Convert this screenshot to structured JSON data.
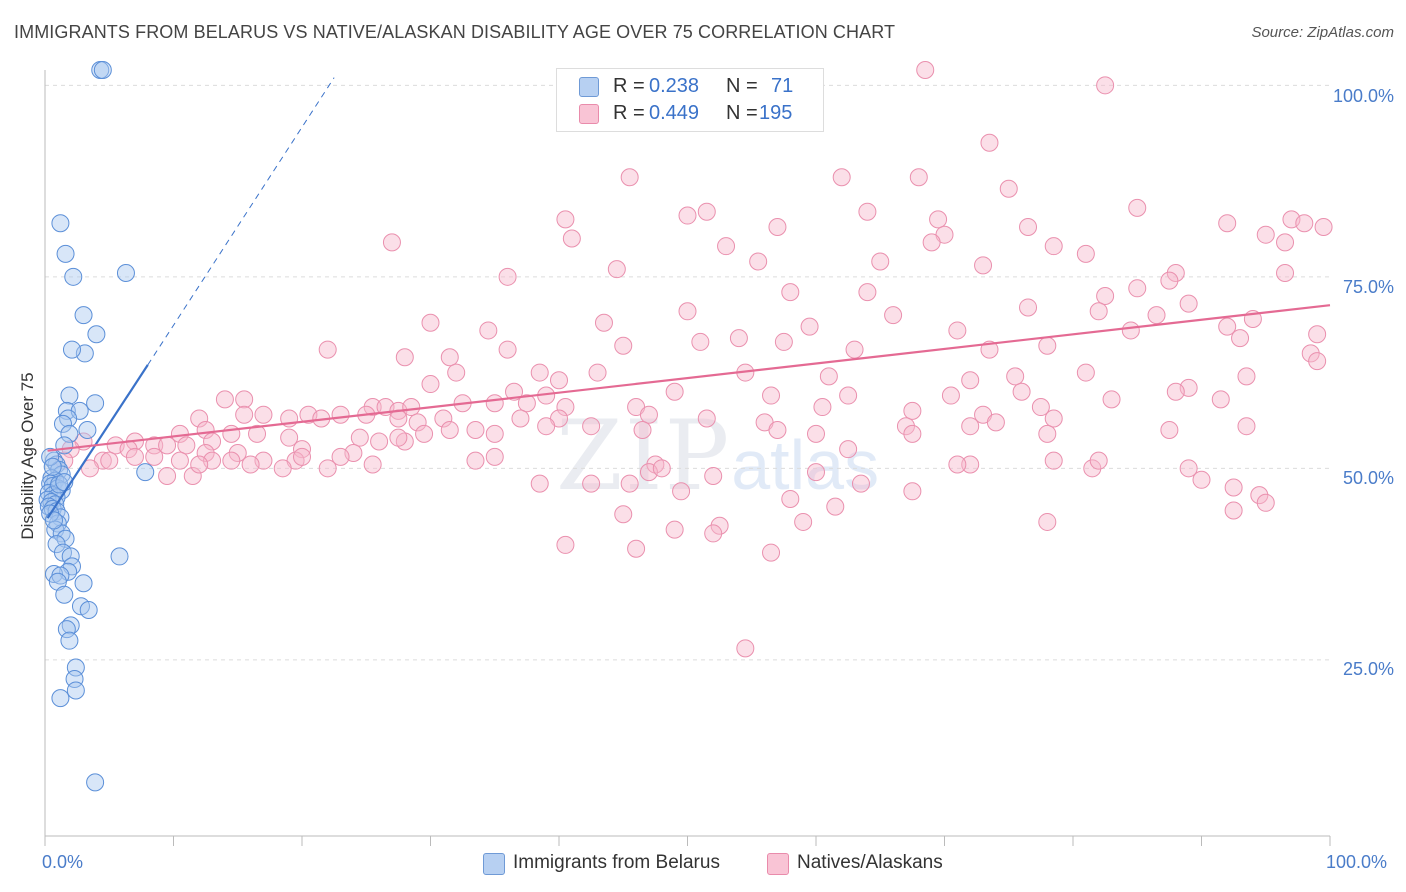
{
  "title": "IMMIGRANTS FROM BELARUS VS NATIVE/ALASKAN DISABILITY AGE OVER 75 CORRELATION CHART",
  "source": "Source: ZipAtlas.com",
  "watermark": {
    "zip": "ZIP",
    "atlas": "atlas"
  },
  "colors": {
    "blue": "#3a72c9",
    "blue_fill": "#a8c8f0",
    "pink": "#e46a93",
    "pink_fill": "#f7b8cc",
    "tick_text": "#4a7cc9",
    "grid": "#dcdcdc"
  },
  "legend_top": [
    {
      "swatch": "blue",
      "r_label": "R =",
      "r_value": "0.238",
      "n_label": "N =",
      "n_value": "71"
    },
    {
      "swatch": "pink",
      "r_label": "R =",
      "r_value": "0.449",
      "n_label": "N =",
      "n_value": "195"
    }
  ],
  "legend_bottom": [
    {
      "swatch": "blue",
      "label": "Immigrants from Belarus"
    },
    {
      "swatch": "pink",
      "label": "Natives/Alaskans"
    }
  ],
  "chart_data": {
    "type": "scatter",
    "title": "IMMIGRANTS FROM BELARUS VS NATIVE/ALASKAN DISABILITY AGE OVER 75 CORRELATION CHART",
    "xlabel": "",
    "ylabel": "Disability Age Over 75",
    "xlim": [
      0,
      100
    ],
    "ylim": [
      2,
      102
    ],
    "x_ticks": [
      "0.0%",
      "100.0%"
    ],
    "y_ticks": [
      {
        "value": 100,
        "label": "100.0%"
      },
      {
        "value": 75,
        "label": "75.0%"
      },
      {
        "value": 50,
        "label": "50.0%"
      },
      {
        "value": 25,
        "label": "25.0%"
      }
    ],
    "grid": true,
    "series": [
      {
        "name": "Immigrants from Belarus",
        "color": "blue",
        "r": 0.238,
        "n": 71,
        "trend": {
          "x0": 0.2,
          "y0": 43.5,
          "x1": 8.0,
          "y1": 63.5,
          "dash_x1": 22.5,
          "dash_y1": 101
        },
        "points": [
          [
            4.3,
            102
          ],
          [
            4.5,
            102
          ],
          [
            1.2,
            82
          ],
          [
            1.6,
            78
          ],
          [
            2.2,
            75
          ],
          [
            6.3,
            75.5
          ],
          [
            3.0,
            70
          ],
          [
            3.1,
            65
          ],
          [
            4.0,
            67.5
          ],
          [
            2.1,
            65.5
          ],
          [
            1.9,
            59.5
          ],
          [
            1.7,
            57.5
          ],
          [
            2.7,
            57.5
          ],
          [
            3.9,
            58.5
          ],
          [
            1.8,
            56.5
          ],
          [
            1.4,
            55.8
          ],
          [
            1.9,
            54.5
          ],
          [
            3.3,
            55
          ],
          [
            1.5,
            53
          ],
          [
            0.7,
            51
          ],
          [
            0.9,
            50.5
          ],
          [
            1.1,
            49.8
          ],
          [
            1.3,
            49.2
          ],
          [
            0.5,
            48.7
          ],
          [
            0.8,
            48.4
          ],
          [
            0.4,
            48
          ],
          [
            0.6,
            47.7
          ],
          [
            1.0,
            47.4
          ],
          [
            1.3,
            47.1
          ],
          [
            0.3,
            46.8
          ],
          [
            0.6,
            46.5
          ],
          [
            0.9,
            46.2
          ],
          [
            0.2,
            45.9
          ],
          [
            0.5,
            45.6
          ],
          [
            0.8,
            45.3
          ],
          [
            0.3,
            45.0
          ],
          [
            0.6,
            44.7
          ],
          [
            0.9,
            44.4
          ],
          [
            1.2,
            43.6
          ],
          [
            1.0,
            42.8
          ],
          [
            0.8,
            42
          ],
          [
            1.3,
            41.5
          ],
          [
            1.6,
            40.8
          ],
          [
            0.9,
            40.1
          ],
          [
            1.4,
            39
          ],
          [
            2.0,
            38.5
          ],
          [
            2.1,
            37.2
          ],
          [
            1.8,
            36.5
          ],
          [
            0.7,
            36.2
          ],
          [
            1.2,
            36
          ],
          [
            1.0,
            35.2
          ],
          [
            3.0,
            35
          ],
          [
            1.5,
            33.5
          ],
          [
            2.8,
            32
          ],
          [
            3.4,
            31.5
          ],
          [
            2.0,
            29.5
          ],
          [
            1.7,
            29
          ],
          [
            1.9,
            27.5
          ],
          [
            2.4,
            24
          ],
          [
            2.3,
            22.5
          ],
          [
            2.4,
            21
          ],
          [
            1.2,
            20
          ],
          [
            3.9,
            9
          ],
          [
            7.8,
            49.5
          ],
          [
            5.8,
            38.5
          ],
          [
            0.4,
            51.5
          ],
          [
            0.6,
            50.2
          ],
          [
            1.1,
            47.9
          ],
          [
            0.4,
            44.1
          ],
          [
            0.7,
            43.2
          ],
          [
            1.5,
            48.2
          ]
        ]
      },
      {
        "name": "Natives/Alaskans",
        "color": "pink",
        "r": 0.449,
        "n": 195,
        "trend": {
          "x0": 0.2,
          "y0": 52.3,
          "x1": 100,
          "y1": 71.3
        },
        "points": [
          [
            68.5,
            102
          ],
          [
            82.5,
            100
          ],
          [
            73.5,
            92.5
          ],
          [
            62.0,
            88
          ],
          [
            68.0,
            88
          ],
          [
            75.0,
            86.5
          ],
          [
            45.5,
            88
          ],
          [
            64.0,
            83.5
          ],
          [
            85.0,
            84
          ],
          [
            50.0,
            83
          ],
          [
            51.5,
            83.5
          ],
          [
            40.5,
            82.5
          ],
          [
            69.5,
            82.5
          ],
          [
            70.0,
            80.5
          ],
          [
            57.0,
            81.5
          ],
          [
            76.5,
            81.5
          ],
          [
            97.0,
            82.5
          ],
          [
            98.0,
            82
          ],
          [
            99.5,
            81.5
          ],
          [
            92.0,
            82
          ],
          [
            95.0,
            80.5
          ],
          [
            96.5,
            79.5
          ],
          [
            27.0,
            79.5
          ],
          [
            41.0,
            80
          ],
          [
            53.0,
            79
          ],
          [
            69.0,
            79.5
          ],
          [
            78.5,
            79
          ],
          [
            81.0,
            78
          ],
          [
            73.0,
            76.5
          ],
          [
            44.5,
            76
          ],
          [
            55.5,
            77
          ],
          [
            65.0,
            77
          ],
          [
            36.0,
            75
          ],
          [
            88.0,
            75.5
          ],
          [
            87.5,
            74.5
          ],
          [
            96.5,
            75.5
          ],
          [
            64.0,
            73
          ],
          [
            58.0,
            73
          ],
          [
            85.0,
            73.5
          ],
          [
            82.5,
            72.5
          ],
          [
            89.0,
            71.5
          ],
          [
            76.5,
            71
          ],
          [
            50.0,
            70.5
          ],
          [
            66.0,
            70
          ],
          [
            82.0,
            70.5
          ],
          [
            86.5,
            70
          ],
          [
            30.0,
            69
          ],
          [
            43.5,
            69
          ],
          [
            59.5,
            68.5
          ],
          [
            71.0,
            68
          ],
          [
            84.5,
            68
          ],
          [
            92.0,
            68.5
          ],
          [
            94.0,
            69.5
          ],
          [
            99.0,
            67.5
          ],
          [
            34.5,
            68
          ],
          [
            22.0,
            65.5
          ],
          [
            45.0,
            66
          ],
          [
            54.0,
            67
          ],
          [
            28.0,
            64.5
          ],
          [
            31.5,
            64.5
          ],
          [
            36.0,
            65.5
          ],
          [
            51.0,
            66.5
          ],
          [
            57.5,
            66.5
          ],
          [
            63.0,
            65.5
          ],
          [
            73.5,
            65.5
          ],
          [
            78.0,
            66
          ],
          [
            93.0,
            67
          ],
          [
            98.5,
            65
          ],
          [
            32.0,
            62.5
          ],
          [
            38.5,
            62.5
          ],
          [
            43.0,
            62.5
          ],
          [
            40.0,
            61.5
          ],
          [
            54.5,
            62.5
          ],
          [
            61.0,
            62
          ],
          [
            72.0,
            61.5
          ],
          [
            75.5,
            62
          ],
          [
            81.0,
            62.5
          ],
          [
            93.5,
            62
          ],
          [
            99.0,
            64
          ],
          [
            36.5,
            60
          ],
          [
            30.0,
            61
          ],
          [
            39.0,
            59.5
          ],
          [
            49.0,
            60
          ],
          [
            56.5,
            59.5
          ],
          [
            62.5,
            59.5
          ],
          [
            70.5,
            59.5
          ],
          [
            76.0,
            60
          ],
          [
            89.0,
            60.5
          ],
          [
            83.0,
            59
          ],
          [
            14.0,
            59
          ],
          [
            15.5,
            59
          ],
          [
            20.5,
            57
          ],
          [
            25.5,
            58
          ],
          [
            26.5,
            58
          ],
          [
            27.5,
            57.5
          ],
          [
            28.5,
            58
          ],
          [
            32.5,
            58.5
          ],
          [
            35.0,
            58.5
          ],
          [
            37.5,
            58.5
          ],
          [
            40.5,
            58
          ],
          [
            46.0,
            58
          ],
          [
            60.5,
            58
          ],
          [
            67.5,
            57.5
          ],
          [
            73.0,
            57
          ],
          [
            77.5,
            58
          ],
          [
            88.0,
            60
          ],
          [
            91.5,
            59
          ],
          [
            12.0,
            56.5
          ],
          [
            15.5,
            57
          ],
          [
            17.0,
            57
          ],
          [
            19.0,
            56.5
          ],
          [
            21.5,
            56.5
          ],
          [
            23.0,
            57
          ],
          [
            25.0,
            57
          ],
          [
            27.5,
            56.5
          ],
          [
            29.0,
            56
          ],
          [
            31.0,
            56.5
          ],
          [
            37.0,
            56.5
          ],
          [
            40.0,
            56.5
          ],
          [
            47.0,
            57
          ],
          [
            51.5,
            56.5
          ],
          [
            56.0,
            56
          ],
          [
            67.0,
            55.5
          ],
          [
            72.0,
            55.5
          ],
          [
            74.0,
            56
          ],
          [
            78.5,
            56.5
          ],
          [
            87.5,
            55
          ],
          [
            93.5,
            55.5
          ],
          [
            10.5,
            54.5
          ],
          [
            12.5,
            55
          ],
          [
            13.0,
            53.5
          ],
          [
            14.5,
            54.5
          ],
          [
            16.5,
            54.5
          ],
          [
            19.0,
            54
          ],
          [
            24.5,
            54
          ],
          [
            26.0,
            53.5
          ],
          [
            28.0,
            53.5
          ],
          [
            29.5,
            54.5
          ],
          [
            31.5,
            55
          ],
          [
            33.5,
            55
          ],
          [
            35.0,
            54.5
          ],
          [
            39.0,
            55.5
          ],
          [
            42.5,
            55.5
          ],
          [
            46.5,
            55
          ],
          [
            57.0,
            55
          ],
          [
            60.0,
            54.5
          ],
          [
            67.5,
            54.5
          ],
          [
            78.0,
            54.5
          ],
          [
            3.0,
            53.5
          ],
          [
            5.5,
            53
          ],
          [
            7.0,
            53.5
          ],
          [
            8.5,
            53
          ],
          [
            9.5,
            53
          ],
          [
            11.0,
            53
          ],
          [
            12.5,
            52
          ],
          [
            15.0,
            52
          ],
          [
            20.0,
            52.5
          ],
          [
            24.0,
            52
          ],
          [
            27.5,
            54
          ],
          [
            2.0,
            52.5
          ],
          [
            4.5,
            51
          ],
          [
            6.5,
            52.5
          ],
          [
            8.5,
            51.5
          ],
          [
            10.5,
            51
          ],
          [
            13.0,
            51
          ],
          [
            14.5,
            51
          ],
          [
            17.0,
            51
          ],
          [
            19.5,
            51
          ],
          [
            22.0,
            50
          ],
          [
            25.5,
            50.5
          ],
          [
            35.0,
            51.5
          ],
          [
            47.5,
            50.5
          ],
          [
            1.5,
            51
          ],
          [
            3.5,
            50
          ],
          [
            5.0,
            51
          ],
          [
            7.0,
            51.5
          ],
          [
            9.5,
            49
          ],
          [
            11.5,
            49
          ],
          [
            12.0,
            50.5
          ],
          [
            16.0,
            50.5
          ],
          [
            18.5,
            50
          ],
          [
            20.0,
            51.5
          ],
          [
            23.0,
            51.5
          ],
          [
            33.5,
            51
          ],
          [
            47.0,
            49.5
          ],
          [
            48.0,
            50
          ],
          [
            52.0,
            49
          ],
          [
            60.0,
            49.5
          ],
          [
            62.5,
            52.5
          ],
          [
            72.0,
            50.5
          ],
          [
            78.5,
            51
          ],
          [
            81.5,
            50
          ],
          [
            82.0,
            51
          ],
          [
            71.0,
            50.5
          ],
          [
            89.0,
            50
          ],
          [
            90.0,
            48.5
          ],
          [
            92.5,
            47.5
          ],
          [
            49.5,
            47
          ],
          [
            38.5,
            48
          ],
          [
            42.5,
            48
          ],
          [
            45.5,
            48
          ],
          [
            63.5,
            48
          ],
          [
            58.0,
            46
          ],
          [
            67.5,
            47
          ],
          [
            94.5,
            46.5
          ],
          [
            95.0,
            45.5
          ],
          [
            92.5,
            44.5
          ],
          [
            61.5,
            45
          ],
          [
            45.0,
            44
          ],
          [
            49.0,
            42
          ],
          [
            59.0,
            43
          ],
          [
            52.5,
            42.5
          ],
          [
            52.0,
            41.5
          ],
          [
            78.0,
            43
          ],
          [
            46.0,
            39.5
          ],
          [
            40.5,
            40
          ],
          [
            56.5,
            39
          ],
          [
            54.5,
            26.5
          ]
        ]
      }
    ]
  }
}
